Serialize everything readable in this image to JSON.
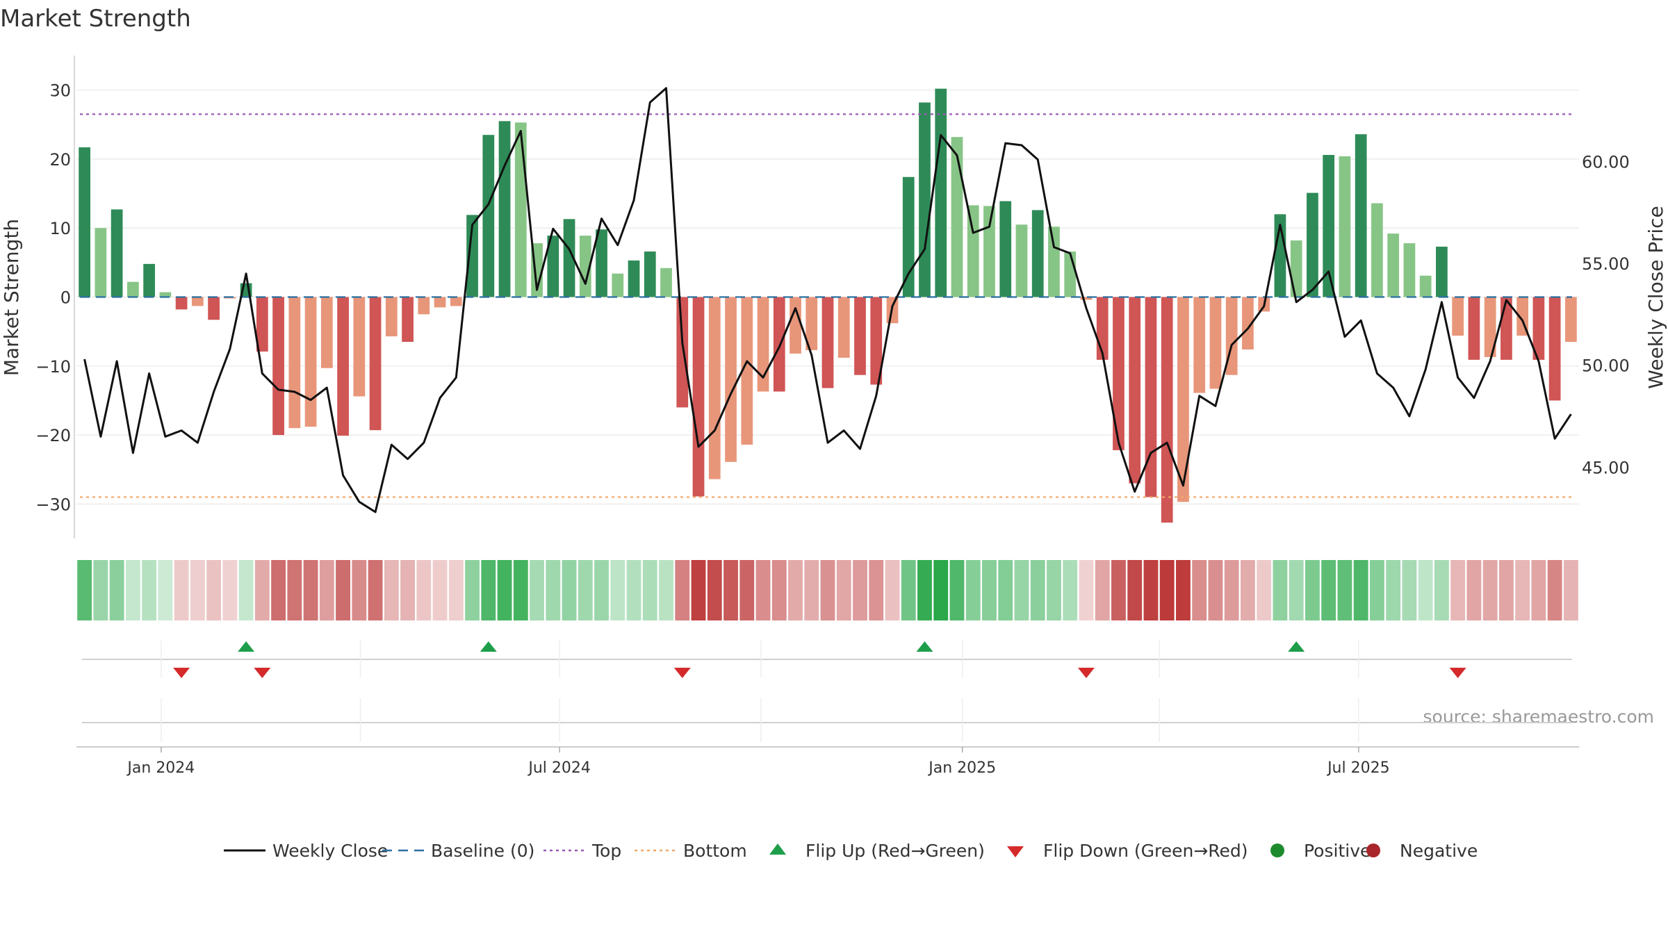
{
  "chart_data": {
    "type": "bar",
    "title": "Market Strength",
    "ylabel": "Market Strength",
    "y2label": "Weekly Close Price",
    "ylim": [
      -35,
      35
    ],
    "y2lim": [
      41.5,
      65.2
    ],
    "yticks": [
      -30,
      -20,
      -10,
      0,
      10,
      20,
      30
    ],
    "yticklabels": [
      "−30",
      "−20",
      "−10",
      "0",
      "10",
      "20",
      "30"
    ],
    "y2ticks": [
      45,
      50,
      55,
      60
    ],
    "y2ticklabels": [
      "45.00",
      "50.00",
      "55.00",
      "60.00"
    ],
    "x_start": "2023-11-27",
    "x_end": "2025-10-06",
    "xticks": [
      {
        "date": "2024-01-01",
        "label": "Jan 2024"
      },
      {
        "date": "2024-07-01",
        "label": "Jul 2024"
      },
      {
        "date": "2025-01-01",
        "label": "Jan 2025"
      },
      {
        "date": "2025-07-01",
        "label": "Jul 2025"
      }
    ],
    "minor_dates": [
      "2024-04-01",
      "2024-10-01",
      "2025-04-01"
    ],
    "top_level": 26.5,
    "bottom_level": -29,
    "baseline": 0,
    "strength": [
      21.7,
      10,
      12.7,
      2.2,
      4.8,
      0.7,
      -1.8,
      -1.3,
      -3.3,
      -0.2,
      2,
      -7.9,
      -20,
      -19,
      -18.8,
      -10.3,
      -20.1,
      -14.4,
      -19.3,
      -5.7,
      -6.5,
      -2.5,
      -1.5,
      -1.3,
      11.9,
      23.5,
      25.5,
      25.3,
      7.8,
      8.9,
      11.3,
      8.9,
      9.8,
      3.4,
      5.3,
      6.6,
      4.2,
      -16,
      -28.9,
      -26.4,
      -23.9,
      -21.4,
      -13.7,
      -13.7,
      -8.2,
      -7.7,
      -13.2,
      -8.8,
      -11.3,
      -12.7,
      -3.8,
      17.4,
      28.2,
      30.2,
      23.2,
      13.3,
      13.2,
      13.9,
      10.5,
      12.6,
      10.2,
      6.6,
      -0.4,
      -9.1,
      -22.2,
      -27,
      -29,
      -32.7,
      -29.7,
      -13.9,
      -13.3,
      -11.3,
      -7.6,
      -2.1,
      12,
      8.2,
      15.1,
      20.6,
      20.4,
      23.6,
      13.6,
      9.2,
      7.8,
      3.1,
      7.3,
      -5.6,
      -9.1,
      -8.7,
      -9.1,
      -5.6,
      -9.1,
      -15,
      -6.5
    ],
    "close": [
      50.3,
      46.5,
      50.2,
      45.7,
      49.6,
      46.5,
      46.8,
      46.2,
      48.7,
      50.8,
      54.5,
      49.6,
      48.8,
      48.7,
      48.3,
      48.9,
      44.6,
      43.3,
      42.8,
      46.1,
      45.4,
      46.2,
      48.4,
      49.4,
      56.9,
      57.9,
      59.8,
      61.5,
      53.7,
      56.7,
      55.7,
      54,
      57.2,
      55.9,
      58.1,
      62.9,
      63.6,
      51.1,
      46,
      46.8,
      48.6,
      50.2,
      49.4,
      50.9,
      52.8,
      50.5,
      46.2,
      46.8,
      45.9,
      48.5,
      52.9,
      54.5,
      55.7,
      61.3,
      60.3,
      56.5,
      56.8,
      60.9,
      60.8,
      60.1,
      55.8,
      55.5,
      52.8,
      50.6,
      46.2,
      43.8,
      45.7,
      46.2,
      44.1,
      48.5,
      48,
      51,
      51.8,
      52.9,
      56.9,
      53.1,
      53.7,
      54.6,
      51.4,
      52.2,
      49.6,
      48.9,
      47.5,
      49.8,
      53.1,
      49.4,
      48.4,
      50.2,
      53.2,
      52.2,
      50.2,
      46.4,
      47.6
    ],
    "flips": [
      {
        "index": 10,
        "direction": "up"
      },
      {
        "index": 25,
        "direction": "up"
      },
      {
        "index": 52,
        "direction": "up"
      },
      {
        "index": 75,
        "direction": "up"
      },
      {
        "index": 6,
        "direction": "down"
      },
      {
        "index": 11,
        "direction": "down"
      },
      {
        "index": 37,
        "direction": "down"
      },
      {
        "index": 62,
        "direction": "down"
      },
      {
        "index": 85,
        "direction": "down"
      }
    ],
    "legend": [
      {
        "key": "close",
        "label": "Weekly Close",
        "color": "#111111"
      },
      {
        "key": "baseline",
        "label": "Baseline (0)",
        "color": "#2a6fa0"
      },
      {
        "key": "top",
        "label": "Top",
        "color": "#9b59b6"
      },
      {
        "key": "bottom",
        "label": "Bottom",
        "color": "#f0a868"
      },
      {
        "key": "flip-up",
        "label": "Flip Up (Red→Green)",
        "color": "#1e9e4a"
      },
      {
        "key": "flip-down",
        "label": "Flip Down (Green→Red)",
        "color": "#d42a2a"
      },
      {
        "key": "positive",
        "label": "Positive",
        "color": "#1e8a2e"
      },
      {
        "key": "negative",
        "label": "Negative",
        "color": "#a8262b"
      }
    ],
    "legend_position": "bottom-center",
    "source_text": "source: sharemaestro.com",
    "colors": {
      "pos_strong": "#2e8b57",
      "pos_light": "#87c587",
      "neg_strong": "#d05555",
      "neg_light": "#e8967a",
      "grid": "#ececec",
      "axis": "#cccccc"
    }
  }
}
